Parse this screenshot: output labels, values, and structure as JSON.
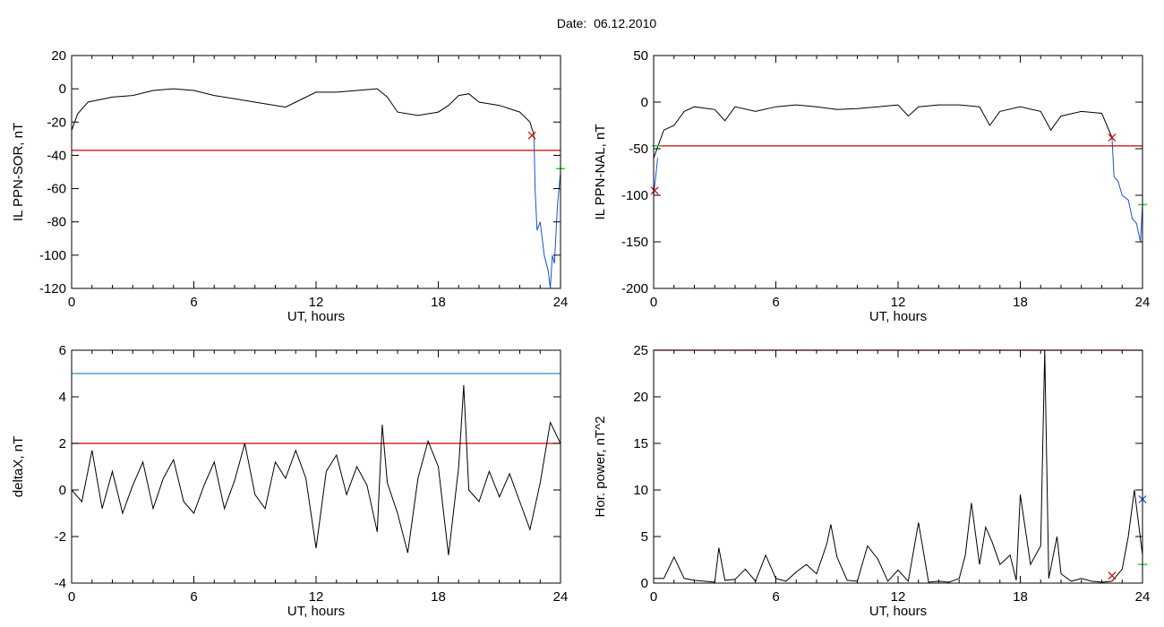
{
  "figure": {
    "title": "Date:  06.12.2010"
  },
  "chart_data": [
    {
      "type": "line",
      "xlabel": "UT, hours",
      "ylabel": "IL PPN-SOR, nT",
      "xlim": [
        0,
        24
      ],
      "ylim": [
        -120,
        20
      ],
      "xticks": [
        0,
        6,
        12,
        18,
        24
      ],
      "yticks": [
        20,
        0,
        -20,
        -40,
        -60,
        -80,
        -100,
        -120
      ],
      "grid": false,
      "series": [
        {
          "color": "#000000",
          "x": [
            0,
            0.3,
            0.8,
            2,
            3,
            4,
            5,
            6,
            7,
            8,
            9,
            10,
            10.5,
            11,
            12,
            13,
            14,
            15,
            15.5,
            16,
            17,
            18,
            18.5,
            19,
            19.5,
            20,
            21,
            22,
            22.5,
            22.7
          ],
          "y": [
            -25,
            -15,
            -8,
            -5,
            -4,
            -1,
            0,
            -1,
            -4,
            -6,
            -8,
            -10,
            -11,
            -8,
            -2,
            -2,
            -1,
            0,
            -5,
            -14,
            -16,
            -14,
            -10,
            -4,
            -3,
            -8,
            -10,
            -14,
            -20,
            -28
          ]
        },
        {
          "color": "#1a4fd6",
          "x": [
            22.7,
            22.75,
            22.85,
            23,
            23.2,
            23.4,
            23.5,
            23.6,
            23.7,
            23.85,
            24
          ],
          "y": [
            -28,
            -60,
            -85,
            -80,
            -100,
            -110,
            -120,
            -100,
            -105,
            -70,
            -50
          ]
        }
      ],
      "hlines": [
        {
          "y": -37,
          "color": "#cc0000"
        }
      ],
      "markers": [
        {
          "x": 22.6,
          "y": -28,
          "symbol": "x",
          "color": "#cc0000"
        },
        {
          "x": 24,
          "y": -48,
          "symbol": "dash",
          "color": "#33cc33"
        }
      ]
    },
    {
      "type": "line",
      "xlabel": "UT, hours",
      "ylabel": "IL PPN-NAL, nT",
      "xlim": [
        0,
        24
      ],
      "ylim": [
        -200,
        50
      ],
      "xticks": [
        0,
        6,
        12,
        18,
        24
      ],
      "yticks": [
        50,
        0,
        -50,
        -100,
        -150,
        -200
      ],
      "grid": false,
      "series": [
        {
          "color": "#000000",
          "x": [
            0,
            0.5,
            1,
            1.5,
            2,
            3,
            3.5,
            4,
            5,
            6,
            7,
            8,
            9,
            10,
            11,
            12,
            12.5,
            13,
            14,
            15,
            16,
            16.5,
            17,
            18,
            19,
            19.5,
            20,
            21,
            22,
            22.5
          ],
          "y": [
            -60,
            -30,
            -25,
            -10,
            -5,
            -8,
            -20,
            -5,
            -10,
            -5,
            -3,
            -5,
            -8,
            -7,
            -5,
            -3,
            -15,
            -5,
            -3,
            -3,
            -5,
            -25,
            -10,
            -5,
            -10,
            -30,
            -15,
            -10,
            -12,
            -38
          ]
        },
        {
          "color": "#1a4fd6",
          "x": [
            0,
            0.1,
            0.2
          ],
          "y": [
            -100,
            -80,
            -60
          ]
        },
        {
          "color": "#1a4fd6",
          "x": [
            22.5,
            22.6,
            22.8,
            23,
            23.3,
            23.5,
            23.7,
            23.9,
            24
          ],
          "y": [
            -38,
            -80,
            -85,
            -100,
            -105,
            -125,
            -130,
            -150,
            -110
          ]
        }
      ],
      "hlines": [
        {
          "y": -47,
          "color": "#cc0000"
        }
      ],
      "markers": [
        {
          "x": 22.5,
          "y": -38,
          "symbol": "x",
          "color": "#cc0000"
        },
        {
          "x": 0.05,
          "y": -95,
          "symbol": "x",
          "color": "#cc0000"
        },
        {
          "x": 0.15,
          "y": -47,
          "symbol": "dash",
          "color": "#33cc33"
        },
        {
          "x": 24,
          "y": -110,
          "symbol": "dash",
          "color": "#33cc33"
        }
      ]
    },
    {
      "type": "line",
      "xlabel": "UT, hours",
      "ylabel": "deltaX, nT",
      "xlim": [
        0,
        24
      ],
      "ylim": [
        -4,
        6
      ],
      "xticks": [
        0,
        6,
        12,
        18,
        24
      ],
      "yticks": [
        6,
        4,
        2,
        0,
        -2,
        -4
      ],
      "grid": false,
      "series": [
        {
          "color": "#000000",
          "x": [
            0,
            0.5,
            1,
            1.5,
            2,
            2.5,
            3,
            3.5,
            4,
            4.5,
            5,
            5.5,
            6,
            6.5,
            7,
            7.5,
            8,
            8.5,
            9,
            9.5,
            10,
            10.5,
            11,
            11.5,
            12,
            12.5,
            13,
            13.5,
            14,
            14.5,
            15,
            15.25,
            15.5,
            16,
            16.5,
            17,
            17.5,
            18,
            18.5,
            19,
            19.25,
            19.5,
            20,
            20.5,
            21,
            21.5,
            22,
            22.5,
            23,
            23.5,
            24
          ],
          "y": [
            0,
            -0.5,
            1.7,
            -0.8,
            0.8,
            -1,
            0.2,
            1.2,
            -0.8,
            0.5,
            1.3,
            -0.5,
            -1,
            0.2,
            1.2,
            -0.8,
            0.4,
            2,
            -0.2,
            -0.8,
            1.2,
            0.5,
            1.7,
            0.5,
            -2.5,
            0.8,
            1.5,
            -0.2,
            1,
            0.2,
            -1.8,
            2.8,
            0.3,
            -1,
            -2.7,
            0.5,
            2.1,
            1,
            -2.8,
            1,
            4.5,
            0,
            -0.5,
            0.8,
            -0.3,
            0.7,
            -0.5,
            -1.7,
            0.3,
            2.9,
            2
          ]
        }
      ],
      "hlines": [
        {
          "y": 5,
          "color": "#2a8fb0"
        },
        {
          "y": 2,
          "color": "#cc0000"
        }
      ],
      "markers": []
    },
    {
      "type": "line",
      "xlabel": "UT, hours",
      "ylabel": "Hor. power, nT^2",
      "xlim": [
        0,
        24
      ],
      "ylim": [
        0,
        25
      ],
      "xticks": [
        0,
        6,
        12,
        18,
        24
      ],
      "yticks": [
        25,
        20,
        15,
        10,
        5,
        0
      ],
      "grid": false,
      "series": [
        {
          "color": "#000000",
          "x": [
            0,
            0.5,
            1,
            1.5,
            2,
            2.5,
            3,
            3.2,
            3.5,
            4,
            4.5,
            5,
            5.5,
            6,
            6.5,
            7,
            7.5,
            8,
            8.5,
            8.7,
            9,
            9.5,
            10,
            10.5,
            11,
            11.5,
            12,
            12.5,
            13,
            13.5,
            14,
            14.5,
            15,
            15.3,
            15.6,
            16,
            16.3,
            16.6,
            17,
            17.5,
            17.8,
            18,
            18.5,
            19,
            19.2,
            19.4,
            19.8,
            20,
            20.5,
            21,
            21.5,
            22,
            22.5,
            23,
            23.3,
            23.6,
            24
          ],
          "y": [
            0.5,
            0.5,
            2.8,
            0.5,
            0.3,
            0.2,
            0.1,
            3.8,
            0.3,
            0.4,
            1.5,
            0.2,
            3,
            0.5,
            0.2,
            1.2,
            2,
            1,
            4.2,
            6.3,
            2.8,
            0.3,
            0.2,
            4,
            2.6,
            0.2,
            1.4,
            0.2,
            6.5,
            0.1,
            0.2,
            0.1,
            0.5,
            3,
            8.6,
            2,
            6,
            4.5,
            2,
            3,
            0.3,
            9.5,
            2,
            4,
            25,
            0.5,
            5,
            1,
            0.2,
            0.5,
            0.2,
            0.1,
            0.2,
            1.5,
            5,
            10,
            3
          ]
        }
      ],
      "hlines": [
        {
          "y": 25,
          "color": "#cc0000"
        }
      ],
      "markers": [
        {
          "x": 22.5,
          "y": 0.8,
          "symbol": "x",
          "color": "#cc0000"
        },
        {
          "x": 24,
          "y": 9,
          "symbol": "x",
          "color": "#1a4fd6"
        },
        {
          "x": 24,
          "y": 2,
          "symbol": "dash",
          "color": "#33cc33"
        }
      ]
    }
  ]
}
